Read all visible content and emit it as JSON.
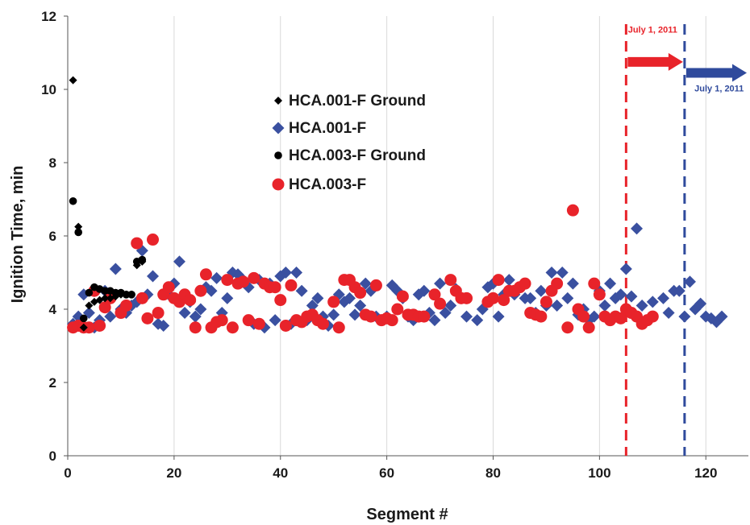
{
  "chart_data": {
    "type": "scatter",
    "title": "",
    "xlabel": "Segment #",
    "ylabel": "Ignition Time, min",
    "xlim": [
      0,
      128
    ],
    "ylim": [
      0,
      12
    ],
    "xticks": [
      0,
      20,
      40,
      60,
      80,
      100,
      120
    ],
    "yticks": [
      0,
      2,
      4,
      6,
      8,
      10,
      12
    ],
    "grid": "vertical",
    "legend_position": "upper-left-center",
    "colors": {
      "hca001_ground": "#000000",
      "hca001": "#3a50a0",
      "hca003_ground": "#000000",
      "hca003": "#e8232a",
      "red_line": "#e8232a",
      "blue_line": "#2f4a9c"
    },
    "series": [
      {
        "name": "HCA.001-F Ground",
        "marker": "small-diamond",
        "points": [
          [
            1,
            10.25
          ],
          [
            2,
            6.25
          ],
          [
            3,
            3.5
          ],
          [
            4,
            4.1
          ],
          [
            5,
            4.2
          ],
          [
            6,
            4.25
          ],
          [
            7,
            4.3
          ],
          [
            8,
            4.3
          ],
          [
            9,
            4.35
          ],
          [
            10,
            4.4
          ],
          [
            11,
            4.4
          ],
          [
            12,
            4.4
          ],
          [
            13,
            5.2
          ],
          [
            14,
            5.3
          ]
        ]
      },
      {
        "name": "HCA.001-F",
        "marker": "diamond",
        "points": [
          [
            1,
            3.6
          ],
          [
            2,
            3.8
          ],
          [
            3,
            4.4
          ],
          [
            4,
            3.9
          ],
          [
            5,
            3.5
          ],
          [
            6,
            3.7
          ],
          [
            7,
            4.5
          ],
          [
            8,
            3.8
          ],
          [
            9,
            5.1
          ],
          [
            10,
            4.0
          ],
          [
            11,
            3.9
          ],
          [
            12,
            4.1
          ],
          [
            13,
            4.2
          ],
          [
            14,
            5.6
          ],
          [
            15,
            4.4
          ],
          [
            16,
            4.9
          ],
          [
            17,
            3.6
          ],
          [
            18,
            3.55
          ],
          [
            19,
            4.4
          ],
          [
            20,
            4.7
          ],
          [
            21,
            5.3
          ],
          [
            22,
            3.9
          ],
          [
            23,
            4.2
          ],
          [
            24,
            3.8
          ],
          [
            25,
            4.0
          ],
          [
            26,
            4.6
          ],
          [
            27,
            4.5
          ],
          [
            28,
            4.85
          ],
          [
            29,
            3.9
          ],
          [
            30,
            4.3
          ],
          [
            31,
            5.0
          ],
          [
            32,
            4.95
          ],
          [
            33,
            4.8
          ],
          [
            34,
            4.6
          ],
          [
            35,
            3.6
          ],
          [
            36,
            4.8
          ],
          [
            37,
            3.5
          ],
          [
            38,
            4.7
          ],
          [
            39,
            3.7
          ],
          [
            40,
            4.9
          ],
          [
            41,
            5.0
          ],
          [
            42,
            3.6
          ],
          [
            43,
            5.0
          ],
          [
            44,
            4.5
          ],
          [
            45,
            3.7
          ],
          [
            46,
            4.1
          ],
          [
            47,
            4.3
          ],
          [
            48,
            3.8
          ],
          [
            49,
            3.55
          ],
          [
            50,
            3.85
          ],
          [
            51,
            4.4
          ],
          [
            52,
            4.2
          ],
          [
            53,
            4.3
          ],
          [
            54,
            3.85
          ],
          [
            55,
            4.1
          ],
          [
            56,
            4.7
          ],
          [
            57,
            4.5
          ],
          [
            58,
            3.8
          ],
          [
            59,
            3.7
          ],
          [
            60,
            3.8
          ],
          [
            61,
            4.65
          ],
          [
            62,
            4.5
          ],
          [
            63,
            4.3
          ],
          [
            64,
            3.8
          ],
          [
            65,
            3.7
          ],
          [
            66,
            4.4
          ],
          [
            67,
            4.5
          ],
          [
            68,
            3.9
          ],
          [
            69,
            3.7
          ],
          [
            70,
            4.7
          ],
          [
            71,
            3.9
          ],
          [
            72,
            4.1
          ],
          [
            73,
            4.55
          ],
          [
            74,
            4.3
          ],
          [
            75,
            3.8
          ],
          [
            77,
            3.7
          ],
          [
            78,
            4.0
          ],
          [
            79,
            4.6
          ],
          [
            80,
            4.7
          ],
          [
            81,
            3.8
          ],
          [
            82,
            4.4
          ],
          [
            83,
            4.8
          ],
          [
            84,
            4.4
          ],
          [
            85,
            4.6
          ],
          [
            86,
            4.3
          ],
          [
            87,
            4.3
          ],
          [
            88,
            3.9
          ],
          [
            89,
            4.5
          ],
          [
            90,
            4.1
          ],
          [
            91,
            5.0
          ],
          [
            92,
            4.1
          ],
          [
            93,
            5.0
          ],
          [
            94,
            4.3
          ],
          [
            95,
            4.7
          ],
          [
            96,
            3.85
          ],
          [
            97,
            4.0
          ],
          [
            98,
            3.7
          ],
          [
            99,
            3.8
          ],
          [
            100,
            4.5
          ],
          [
            101,
            4.1
          ],
          [
            102,
            4.7
          ],
          [
            103,
            4.3
          ],
          [
            104,
            4.4
          ],
          [
            105,
            5.1
          ],
          [
            106,
            4.35
          ],
          [
            107,
            6.2
          ],
          [
            108,
            4.1
          ],
          [
            109,
            3.7
          ],
          [
            110,
            4.2
          ],
          [
            112,
            4.3
          ],
          [
            113,
            3.9
          ],
          [
            114,
            4.5
          ],
          [
            115,
            4.5
          ],
          [
            116,
            3.8
          ],
          [
            117,
            4.75
          ],
          [
            118,
            4.0
          ],
          [
            119,
            4.15
          ],
          [
            120,
            3.8
          ],
          [
            121,
            3.75
          ],
          [
            122,
            3.65
          ],
          [
            123,
            3.8
          ]
        ]
      },
      {
        "name": "HCA.003-F Ground",
        "marker": "circle",
        "points": [
          [
            1,
            6.95
          ],
          [
            2,
            6.1
          ],
          [
            3,
            3.75
          ],
          [
            4,
            4.45
          ],
          [
            5,
            4.6
          ],
          [
            6,
            4.55
          ],
          [
            7,
            4.5
          ],
          [
            8,
            4.5
          ],
          [
            9,
            4.45
          ],
          [
            10,
            4.45
          ],
          [
            11,
            4.4
          ],
          [
            12,
            4.4
          ],
          [
            13,
            5.3
          ],
          [
            14,
            5.35
          ]
        ]
      },
      {
        "name": "HCA.003-F",
        "marker": "large-circle",
        "points": [
          [
            1,
            3.5
          ],
          [
            2,
            3.55
          ],
          [
            3,
            3.5
          ],
          [
            4,
            3.5
          ],
          [
            5,
            4.5
          ],
          [
            6,
            3.55
          ],
          [
            7,
            4.05
          ],
          [
            8,
            4.3
          ],
          [
            10,
            3.9
          ],
          [
            11,
            4.1
          ],
          [
            13,
            5.8
          ],
          [
            14,
            4.3
          ],
          [
            15,
            3.75
          ],
          [
            16,
            5.9
          ],
          [
            17,
            3.9
          ],
          [
            18,
            4.4
          ],
          [
            19,
            4.6
          ],
          [
            20,
            4.3
          ],
          [
            21,
            4.2
          ],
          [
            22,
            4.4
          ],
          [
            23,
            4.25
          ],
          [
            24,
            3.5
          ],
          [
            25,
            4.5
          ],
          [
            26,
            4.95
          ],
          [
            27,
            3.5
          ],
          [
            28,
            3.65
          ],
          [
            29,
            3.7
          ],
          [
            30,
            4.8
          ],
          [
            31,
            3.5
          ],
          [
            32,
            4.7
          ],
          [
            33,
            4.75
          ],
          [
            34,
            3.7
          ],
          [
            35,
            4.85
          ],
          [
            36,
            3.6
          ],
          [
            37,
            4.7
          ],
          [
            38,
            4.6
          ],
          [
            39,
            4.6
          ],
          [
            40,
            4.25
          ],
          [
            41,
            3.55
          ],
          [
            42,
            4.65
          ],
          [
            43,
            3.7
          ],
          [
            44,
            3.65
          ],
          [
            45,
            3.8
          ],
          [
            46,
            3.85
          ],
          [
            47,
            3.7
          ],
          [
            48,
            3.6
          ],
          [
            50,
            4.2
          ],
          [
            51,
            3.5
          ],
          [
            52,
            4.8
          ],
          [
            53,
            4.8
          ],
          [
            54,
            4.6
          ],
          [
            55,
            4.45
          ],
          [
            56,
            3.85
          ],
          [
            57,
            3.8
          ],
          [
            58,
            4.65
          ],
          [
            59,
            3.7
          ],
          [
            60,
            3.75
          ],
          [
            61,
            3.7
          ],
          [
            62,
            4.0
          ],
          [
            63,
            4.35
          ],
          [
            64,
            3.85
          ],
          [
            65,
            3.85
          ],
          [
            66,
            3.8
          ],
          [
            67,
            3.8
          ],
          [
            69,
            4.4
          ],
          [
            70,
            4.15
          ],
          [
            72,
            4.8
          ],
          [
            73,
            4.5
          ],
          [
            74,
            4.3
          ],
          [
            75,
            4.3
          ],
          [
            79,
            4.2
          ],
          [
            80,
            4.3
          ],
          [
            81,
            4.8
          ],
          [
            82,
            4.25
          ],
          [
            83,
            4.5
          ],
          [
            84,
            4.5
          ],
          [
            85,
            4.6
          ],
          [
            86,
            4.7
          ],
          [
            87,
            3.9
          ],
          [
            88,
            3.85
          ],
          [
            89,
            3.8
          ],
          [
            90,
            4.2
          ],
          [
            91,
            4.5
          ],
          [
            92,
            4.7
          ],
          [
            94,
            3.5
          ],
          [
            95,
            6.7
          ],
          [
            96,
            4.0
          ],
          [
            97,
            3.8
          ],
          [
            98,
            3.5
          ],
          [
            99,
            4.7
          ],
          [
            100,
            4.4
          ],
          [
            101,
            3.8
          ],
          [
            102,
            3.7
          ],
          [
            103,
            3.8
          ],
          [
            104,
            3.75
          ],
          [
            105,
            4.0
          ],
          [
            106,
            3.9
          ],
          [
            107,
            3.8
          ],
          [
            108,
            3.6
          ],
          [
            109,
            3.7
          ],
          [
            110,
            3.8
          ]
        ]
      }
    ],
    "vlines": [
      {
        "x": 105,
        "color": "#e8232a",
        "style": "dashed"
      },
      {
        "x": 116,
        "color": "#2f4a9c",
        "style": "dashed"
      }
    ],
    "annotations": [
      {
        "text": "July 1, 2011",
        "color": "#e8232a",
        "x": 110,
        "y": 11.55
      },
      {
        "text": "July 1, 2011",
        "color": "#2f4a9c",
        "x": 122.5,
        "y": 9.95
      }
    ],
    "arrows": [
      {
        "from": 105,
        "to": 116,
        "y": 10.75,
        "color": "#e8232a"
      },
      {
        "from": 116,
        "to": 128,
        "y": 10.45,
        "color": "#2f4a9c"
      }
    ]
  }
}
